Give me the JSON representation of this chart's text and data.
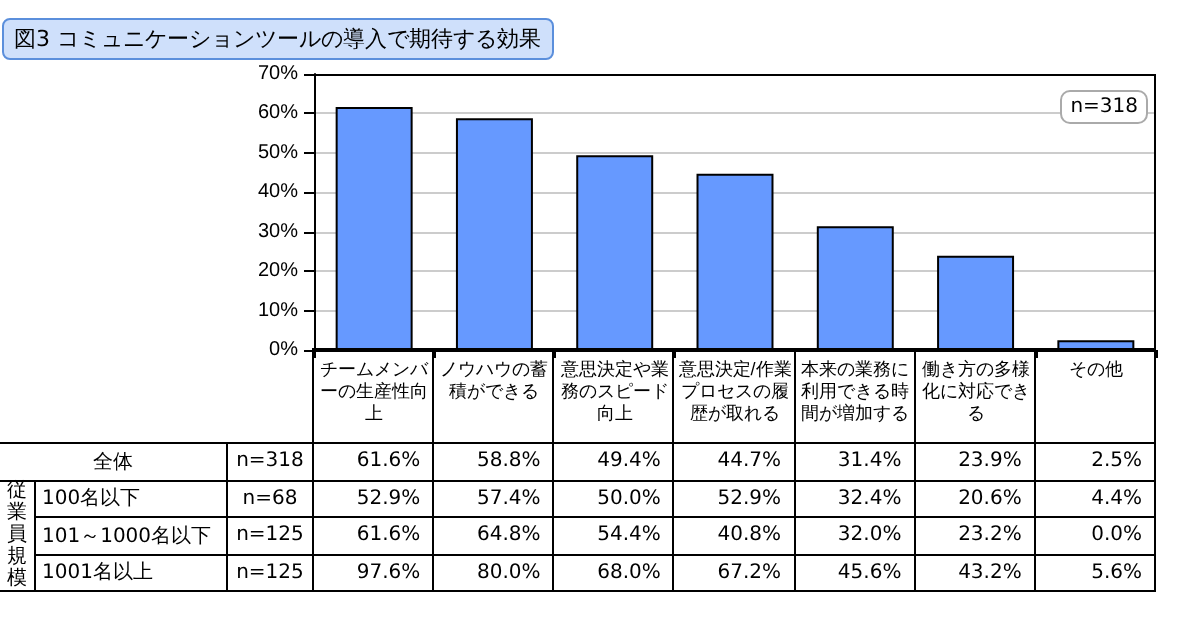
{
  "chart_data": {
    "type": "bar",
    "title": "図3 コミュニケーションツールの導入で期待する効果",
    "categories": [
      "チームメンバーの生産性向上",
      "ノウハウの蓄積ができる",
      "意思決定や業務のスピード向上",
      "意思決定/作業プロセスの履歴が取れる",
      "本来の業務に利用できる時間が増加する",
      "働き方の多様化に対応できる",
      "その他"
    ],
    "series": [
      {
        "name": "全体",
        "color": "#6699ff",
        "values": [
          61.6,
          58.8,
          49.4,
          44.7,
          31.4,
          23.9,
          2.5
        ],
        "value_labels": [
          "61.6%",
          "58.8%",
          "49.4%",
          "44.7%",
          "31.4%",
          "23.9%",
          "2.5%"
        ]
      }
    ],
    "ylim": [
      0,
      70
    ],
    "yticks": [
      {
        "value": 0,
        "label": "0%"
      },
      {
        "value": 10,
        "label": "10%"
      },
      {
        "value": 20,
        "label": "20%"
      },
      {
        "value": 30,
        "label": "30%"
      },
      {
        "value": 40,
        "label": "40%"
      },
      {
        "value": 50,
        "label": "50%"
      },
      {
        "value": 60,
        "label": "60%"
      },
      {
        "value": 70,
        "label": "70%"
      }
    ],
    "grid": "y",
    "annotations": [
      "n=318",
      "n=318",
      "従業員規模",
      "100名以下",
      "n=68",
      "52.9%",
      "57.4%",
      "50.0%",
      "52.9%",
      "32.4%",
      "20.6%",
      "4.4%",
      "101～1000名以下",
      "n=125",
      "61.6%",
      "64.8%",
      "54.4%",
      "40.8%",
      "32.0%",
      "23.2%",
      "0.0%",
      "1001名以上",
      "n=125",
      "97.6%",
      "80.0%",
      "68.0%",
      "67.2%",
      "45.6%",
      "43.2%",
      "5.6%"
    ]
  }
}
